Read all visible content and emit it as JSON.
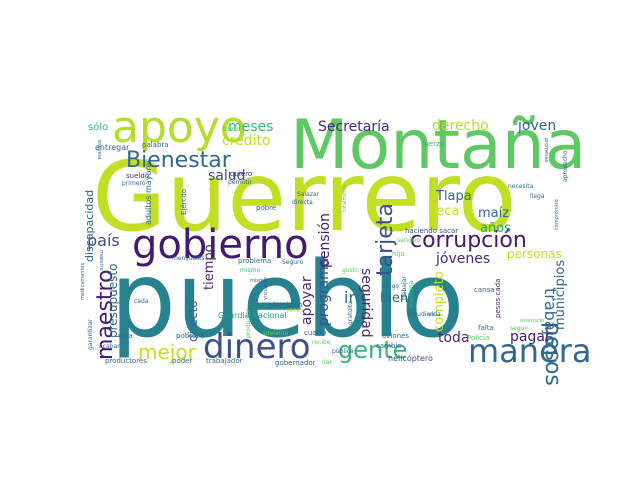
{
  "palette": {
    "dark_purple": "#44196e",
    "purple": "#482878",
    "indigo": "#3b4f8a",
    "blue": "#31688e",
    "teal_dark": "#26828e",
    "teal": "#1f9e89",
    "green": "#35b779",
    "light_green": "#6ece58",
    "lime": "#b5de2b",
    "yellow_green": "#c2df23",
    "yellow": "#fde725"
  },
  "words": [
    {
      "text": "Guerrero",
      "color": "#c2df23"
    },
    {
      "text": "pueblo",
      "color": "#26828e"
    },
    {
      "text": "Montaña",
      "color": "#5ec962"
    },
    {
      "text": "apoyo",
      "color": "#b5de2b"
    },
    {
      "text": "gobierno",
      "color": "#44196e"
    },
    {
      "text": "dinero",
      "color": "#3b4f8a"
    },
    {
      "text": "manera",
      "color": "#31688e"
    },
    {
      "text": "corrupción",
      "color": "#44196e"
    },
    {
      "text": "gente",
      "color": "#35b779"
    },
    {
      "text": "Bienestar",
      "color": "#31688e"
    },
    {
      "text": "maestro",
      "color": "#44196e"
    },
    {
      "text": "tarjeta",
      "color": "#3b4f8a"
    },
    {
      "text": "pesos",
      "color": "#31688e"
    },
    {
      "text": "mejor",
      "color": "#c2df23"
    },
    {
      "text": "país",
      "color": "#3b4f8a"
    },
    {
      "text": "trabajo",
      "color": "#31688e"
    },
    {
      "text": "jóvenes",
      "color": "#482878"
    },
    {
      "text": "Secretaría",
      "color": "#482878"
    },
    {
      "text": "derecho",
      "color": "#b5de2b"
    },
    {
      "text": "joven",
      "color": "#31688e"
    },
    {
      "text": "meses",
      "color": "#35b779"
    },
    {
      "text": "salud",
      "color": "#3b4f8a"
    },
    {
      "text": "crédito",
      "color": "#c2df23"
    },
    {
      "text": "pensión",
      "color": "#44196e"
    },
    {
      "text": "programa",
      "color": "#3b4f8a"
    },
    {
      "text": "apoyar",
      "color": "#482878"
    },
    {
      "text": "ir",
      "color": "#31688e"
    },
    {
      "text": "seguridad",
      "color": "#482878"
    },
    {
      "text": "beca",
      "color": "#c2df23"
    },
    {
      "text": "maíz",
      "color": "#31688e"
    },
    {
      "text": "años",
      "color": "#1f9e89"
    },
    {
      "text": "personas",
      "color": "#c2df23"
    },
    {
      "text": "Tlapa",
      "color": "#31688e"
    },
    {
      "text": "pagar",
      "color": "#44196e"
    },
    {
      "text": "toda",
      "color": "#482878"
    },
    {
      "text": "municipios",
      "color": "#31688e"
    },
    {
      "text": "completo",
      "color": "#c2df23"
    },
    {
      "text": "bien",
      "color": "#31688e"
    },
    {
      "text": "tiempo",
      "color": "#482878"
    },
    {
      "text": "directo",
      "color": "#31688e"
    },
    {
      "text": "presupuesto",
      "color": "#31688e"
    },
    {
      "text": "discapacidad",
      "color": "#31688e"
    },
    {
      "text": "sólo",
      "color": "#35b779"
    },
    {
      "text": "nivel",
      "color": "#5ec962"
    },
    {
      "text": "entregar",
      "color": "#31688e"
    },
    {
      "text": "palabra",
      "color": "#31688e"
    },
    {
      "text": "quiero",
      "color": "#482878"
    },
    {
      "text": "sueldo",
      "color": "#482878"
    },
    {
      "text": "primero",
      "color": "#31688e"
    },
    {
      "text": "adultos mayores",
      "color": "#31688e"
    },
    {
      "text": "Ejército",
      "color": "#31688e"
    },
    {
      "text": "pequeños",
      "color": "#b5de2b"
    },
    {
      "text": "pobre",
      "color": "#31688e"
    },
    {
      "text": "Salazar",
      "color": "#31688e"
    },
    {
      "text": "directa",
      "color": "#31688e"
    },
    {
      "text": "totalmente",
      "color": "#5ec962"
    },
    {
      "text": "Guardia Nacional",
      "color": "#1f9e89"
    },
    {
      "text": "problema",
      "color": "#31688e"
    },
    {
      "text": "Seguro",
      "color": "#31688e"
    },
    {
      "text": "mensuales",
      "color": "#31688e"
    },
    {
      "text": "mismo",
      "color": "#35b779"
    },
    {
      "text": "visitando",
      "color": "#31688e"
    },
    {
      "text": "haciendo sacar",
      "color": "#3b4f8a"
    },
    {
      "text": "servicio",
      "color": "#5ec962"
    },
    {
      "text": "hijo",
      "color": "#5ec962"
    },
    {
      "text": "gusto",
      "color": "#5ec962"
    },
    {
      "text": "estudien",
      "color": "#31688e"
    },
    {
      "text": "dirigo",
      "color": "#31688e"
    },
    {
      "text": "necesita",
      "color": "#31688e"
    },
    {
      "text": "llega",
      "color": "#31688e"
    },
    {
      "text": "aprovecho",
      "color": "#31688e"
    },
    {
      "text": "compromiso",
      "color": "#31688e"
    },
    {
      "text": "promesas",
      "color": "#31688e"
    },
    {
      "text": "fuerza",
      "color": "#35b779"
    },
    {
      "text": "cansa",
      "color": "#31688e"
    },
    {
      "text": "falta",
      "color": "#31688e"
    },
    {
      "text": "pesos cada",
      "color": "#482878"
    },
    {
      "text": "medicina",
      "color": "#35b779"
    },
    {
      "text": "trabajar",
      "color": "#31688e"
    },
    {
      "text": "vida",
      "color": "#31688e"
    },
    {
      "text": "Policía",
      "color": "#5ec962"
    },
    {
      "text": "seguir",
      "color": "#5ec962"
    },
    {
      "text": "avanzado",
      "color": "#5ec962"
    },
    {
      "text": "gratuito",
      "color": "#31688e"
    },
    {
      "text": "recibe",
      "color": "#5ec962"
    },
    {
      "text": "siembren",
      "color": "#31688e"
    },
    {
      "text": "cuatro",
      "color": "#31688e"
    },
    {
      "text": "veces",
      "color": "#b5de2b"
    },
    {
      "text": "adelante",
      "color": "#5ec962"
    },
    {
      "text": "dar",
      "color": "#5ec962"
    },
    {
      "text": "cambio",
      "color": "#31688e"
    },
    {
      "text": "pública",
      "color": "#31688e"
    },
    {
      "text": "aviones",
      "color": "#31688e"
    },
    {
      "text": "helicóptero",
      "color": "#3b4f8a"
    },
    {
      "text": "gobernador",
      "color": "#31688e"
    },
    {
      "text": "trabajador",
      "color": "#31688e"
    },
    {
      "text": "poder",
      "color": "#31688e"
    },
    {
      "text": "productores",
      "color": "#31688e"
    },
    {
      "text": "pobreza",
      "color": "#31688e"
    },
    {
      "text": "viva",
      "color": "#31688e"
    },
    {
      "text": "productor",
      "color": "#5ec962"
    },
    {
      "text": "cada",
      "color": "#31688e"
    },
    {
      "text": "garantizar",
      "color": "#31688e"
    },
    {
      "text": "medicamentos",
      "color": "#31688e"
    },
    {
      "text": "acabar",
      "color": "#31688e"
    },
    {
      "text": "permitir",
      "color": "#31688e"
    },
    {
      "text": "escuela",
      "color": "#31688e"
    },
    {
      "text": "mismo",
      "color": "#31688e"
    },
    {
      "text": "maestro",
      "color": "#31688e"
    }
  ]
}
